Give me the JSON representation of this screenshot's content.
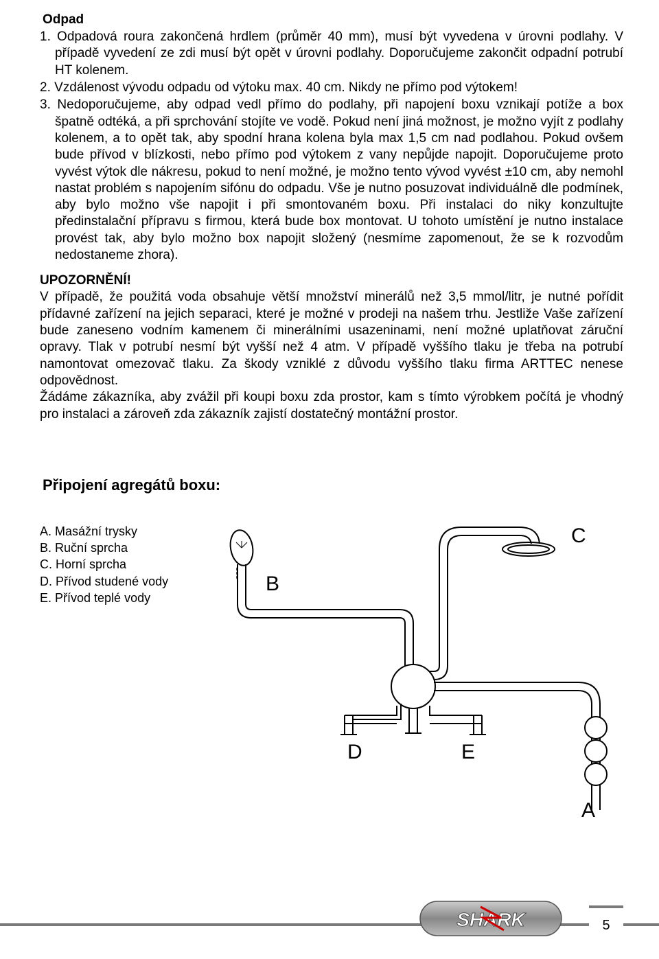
{
  "odpad": {
    "title": "Odpad",
    "items": [
      "1.  Odpadová roura zakončená hrdlem (průměr 40 mm), musí být vyvedena v úrovni podlahy. V případě vyvedení ze zdi musí být opět v úrovni podlahy. Doporučujeme zakončit odpadní potrubí HT kolenem.",
      "2.  Vzdálenost vývodu odpadu od výtoku max. 40 cm. Nikdy ne přímo pod výtokem!",
      "3.  Nedoporučujeme, aby odpad vedl přímo do podlahy, při napojení boxu vznikají potíže a box špatně odtéká, a při sprchování stojíte ve vodě. Pokud není jiná možnost, je možno vyjít z podlahy kolenem, a to opět tak, aby spodní hrana kolena byla max 1,5 cm nad podlahou. Pokud ovšem bude přívod v blízkosti, nebo přímo pod výtokem z vany nepůjde napojit. Doporučujeme proto vyvést výtok dle nákresu, pokud to není možné, je možno tento vývod vyvést ±10 cm, aby nemohl nastat problém s napojením sifónu do odpadu. Vše je nutno posuzovat individuálně dle podmínek, aby bylo možno vše napojit i při smontovaném boxu. Při instalaci do niky konzultujte předinstalační přípravu s firmou, která bude box montovat. U tohoto umístění je nutno instalace provést tak, aby bylo možno box napojit složený (nesmíme zapomenout, že se k rozvodům nedostaneme zhora)."
    ]
  },
  "warning": {
    "title": "UPOZORNĚNÍ!",
    "body": "V případě, že použitá voda obsahuje větší množství minerálů než 3,5 mmol/litr, je nutné pořídit přídavné zařízení na jejich separaci, které je možné v prodeji na našem trhu. Jestliže Vaše zařízení bude zaneseno vodním kamenem či minerálními usazeninami, není možné uplatňovat záruční opravy. Tlak v potrubí nesmí být vyšší než 4 atm. V případě vyššího tlaku je třeba na potrubí namontovat omezovač tlaku. Za škody vzniklé z důvodu vyššího tlaku firma ARTTEC nenese odpovědnost.\nŽádáme zákazníka, aby zvážil při koupi boxu zda prostor, kam s tímto výrobkem počítá je vhodný pro instalaci a zároveň zda zákazník zajistí dostatečný montážní prostor."
  },
  "connect": {
    "title": "Připojení agregátů boxu:",
    "legend": [
      "A. Masážní trysky",
      "B. Ruční sprcha",
      "C. Horní sprcha",
      "D. Přívod studené vody",
      "E. Přívod teplé vody"
    ],
    "labels": {
      "A": "A",
      "B": "B",
      "C": "C",
      "D": "D",
      "E": "E"
    }
  },
  "diagram": {
    "stroke": "#000000",
    "stroke_width": 2,
    "label_fontsize": 30,
    "label_font": "Arial"
  },
  "footer": {
    "logo_text": "SHARK",
    "page": "5",
    "bar_color": "#7a7a7a",
    "logo_bg": "#9a9a9a",
    "logo_text_color": "#ffffff"
  }
}
